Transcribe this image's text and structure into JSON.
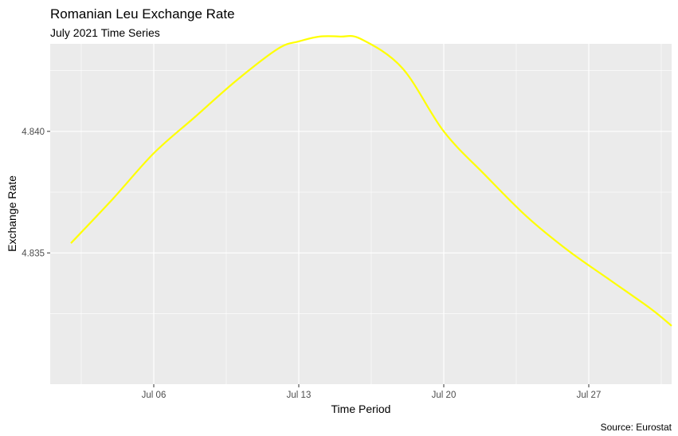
{
  "chart_data": {
    "type": "line",
    "title": "Romanian Leu Exchange Rate",
    "subtitle": "July 2021 Time Series",
    "xlabel": "Time Period",
    "ylabel": "Exchange Rate",
    "caption": "Source: Eurostat",
    "x_ticks": [
      {
        "date": "2021-07-06",
        "label": "Jul 06"
      },
      {
        "date": "2021-07-13",
        "label": "Jul 13"
      },
      {
        "date": "2021-07-20",
        "label": "Jul 20"
      },
      {
        "date": "2021-07-27",
        "label": "Jul 27"
      }
    ],
    "y_ticks": [
      {
        "value": 4.835,
        "label": "4.835"
      },
      {
        "value": 4.84,
        "label": "4.840"
      }
    ],
    "xlim": [
      "2021-07-01",
      "2021-07-31"
    ],
    "ylim": [
      4.8296,
      4.8436
    ],
    "grid": true,
    "line_color": "#ffff00",
    "panel_background": "#ebebeb",
    "x": [
      "2021-07-02",
      "2021-07-04",
      "2021-07-06",
      "2021-07-08",
      "2021-07-10",
      "2021-07-12",
      "2021-07-13",
      "2021-07-14",
      "2021-07-15",
      "2021-07-16",
      "2021-07-18",
      "2021-07-20",
      "2021-07-22",
      "2021-07-24",
      "2021-07-26",
      "2021-07-28",
      "2021-07-30",
      "2021-07-31"
    ],
    "y": [
      4.8354,
      4.8372,
      4.8391,
      4.8406,
      4.8421,
      4.8434,
      4.8437,
      4.8439,
      4.8439,
      4.8438,
      4.8426,
      4.84,
      4.8382,
      4.8365,
      4.8351,
      4.8339,
      4.8327,
      4.832
    ]
  }
}
